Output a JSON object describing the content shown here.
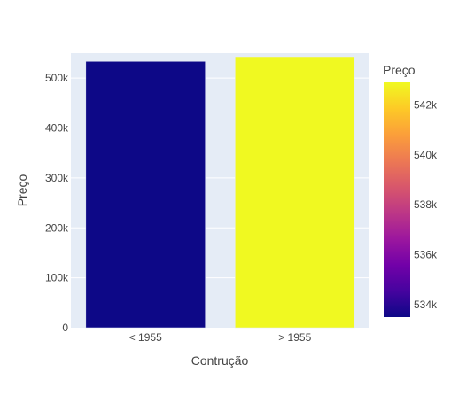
{
  "chart_data": {
    "type": "bar",
    "categories": [
      "< 1955",
      "> 1955"
    ],
    "values": [
      533500,
      542900
    ],
    "title": "",
    "xlabel": "Contrução",
    "ylabel": "Preço",
    "ylim": [
      0,
      550000
    ],
    "yticks": [
      0,
      100000,
      200000,
      300000,
      400000,
      500000
    ],
    "ytick_labels": [
      "0",
      "100k",
      "200k",
      "300k",
      "400k",
      "500k"
    ],
    "grid": true,
    "colorbar": {
      "title": "Preço",
      "range": [
        533500,
        542900
      ],
      "ticks": [
        534000,
        536000,
        538000,
        540000,
        542000
      ],
      "tick_labels": [
        "534k",
        "536k",
        "538k",
        "540k",
        "542k"
      ],
      "colorscale": [
        "#0d0887",
        "#46039f",
        "#7201a8",
        "#9c179e",
        "#bd3786",
        "#d8576b",
        "#ed7953",
        "#fb9f3a",
        "#fdca26",
        "#f0f921"
      ]
    },
    "colors": {
      "plot_background": "#e5ecf6",
      "grid": "#ffffff",
      "text": "#444444"
    }
  }
}
